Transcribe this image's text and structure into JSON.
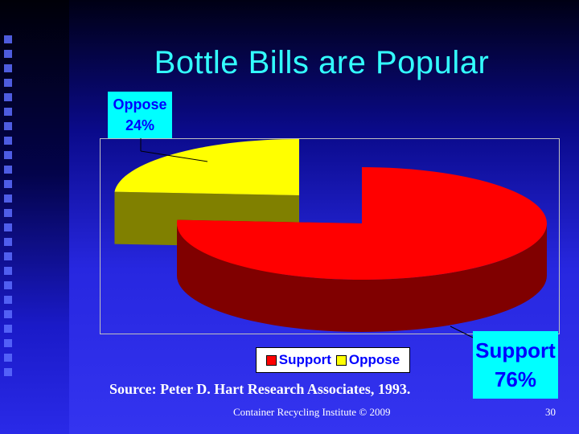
{
  "slide": {
    "title": "Bottle Bills are Popular",
    "source": "Source:  Peter D. Hart Research Associates, 1993.",
    "footer": "Container Recycling Institute © 2009",
    "page_number": "30"
  },
  "colors": {
    "background": "#0000ff",
    "title": "#33ffff",
    "support_top": "#ff0000",
    "support_side": "#800000",
    "oppose_top": "#ffff00",
    "oppose_side": "#808000",
    "callout_bg": "#00ffff",
    "callout_text": "#0000ff"
  },
  "chart_data": {
    "type": "pie",
    "title": "",
    "categories": [
      "Support",
      "Oppose"
    ],
    "values": [
      76,
      24
    ],
    "unit": "%",
    "labels": [
      {
        "category": "Support",
        "text": "Support",
        "value_text": "76%"
      },
      {
        "category": "Oppose",
        "text": "Oppose",
        "value_text": "24%"
      }
    ],
    "legend": {
      "position": "bottom",
      "entries": [
        "Support",
        "Oppose"
      ]
    },
    "style": "3d-exploded"
  }
}
